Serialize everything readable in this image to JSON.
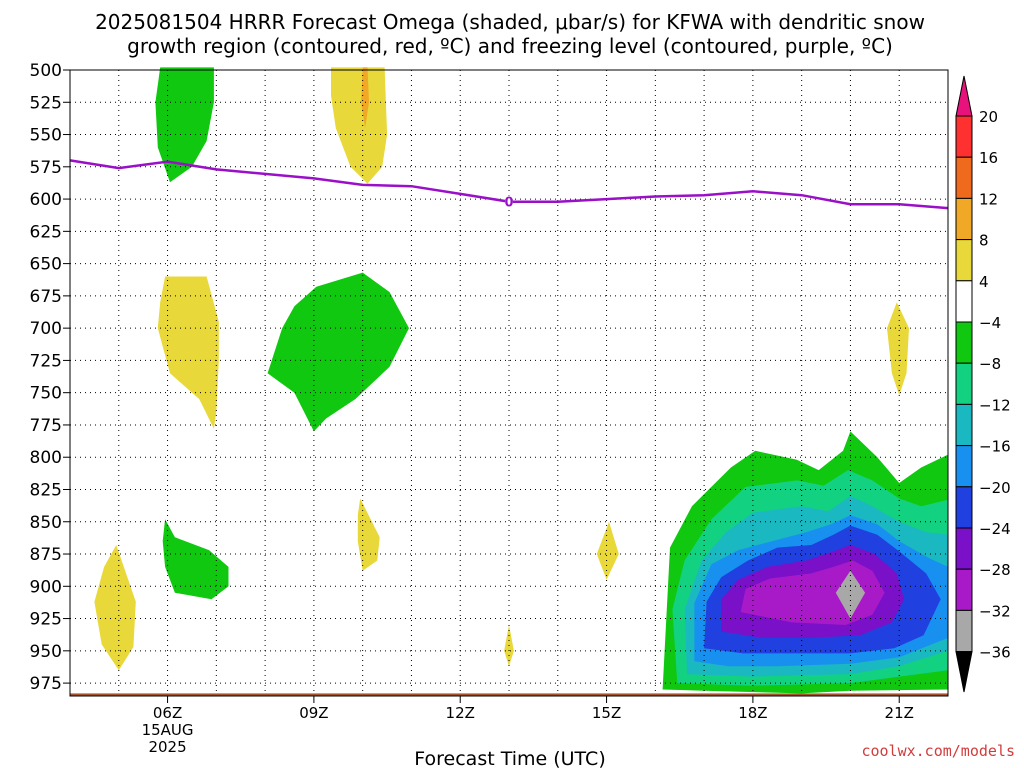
{
  "chart_data": {
    "type": "heatmap",
    "title": [
      "2025081504 HRRR Forecast Omega (shaded, μbar/s) for KFWA with dendritic snow",
      "growth region (contoured, red, ºC) and freezing level (contoured, purple, ºC)"
    ],
    "xlabel": "Forecast Time (UTC)",
    "ylabel": "",
    "x_range_hours": [
      4,
      22
    ],
    "y_range_hPa": [
      500,
      985
    ],
    "y_ticks": [
      "500",
      "525",
      "550",
      "575",
      "600",
      "625",
      "650",
      "675",
      "700",
      "725",
      "750",
      "775",
      "800",
      "825",
      "850",
      "875",
      "900",
      "925",
      "950",
      "975"
    ],
    "x_ticks": [
      {
        "hour": 6,
        "label": "06Z",
        "sub": [
          "15AUG",
          "2025"
        ]
      },
      {
        "hour": 9,
        "label": "09Z"
      },
      {
        "hour": 12,
        "label": "12Z"
      },
      {
        "hour": 15,
        "label": "15Z"
      },
      {
        "hour": 18,
        "label": "18Z"
      },
      {
        "hour": 21,
        "label": "21Z"
      }
    ],
    "grid": true,
    "colorbar": {
      "levels": [
        "20",
        "16",
        "12",
        "8",
        "4",
        "−4",
        "−8",
        "−12",
        "−16",
        "−20",
        "−24",
        "−28",
        "−32",
        "−36"
      ],
      "colors": [
        "#e8127d",
        "#ff3030",
        "#f06a1e",
        "#f0a826",
        "#e8d83a",
        "#ffffff",
        "#10c810",
        "#12d282",
        "#1ab8c0",
        "#1890f0",
        "#2040e0",
        "#7a10c8",
        "#a81ac8",
        "#a8a8a8",
        "#000000"
      ]
    },
    "freezing_level": {
      "color": "#9a10c8",
      "label": "0",
      "points": [
        [
          4.0,
          570
        ],
        [
          5.0,
          576
        ],
        [
          6.0,
          571
        ],
        [
          7.0,
          577
        ],
        [
          9.0,
          584
        ],
        [
          10.0,
          589
        ],
        [
          11.0,
          590
        ],
        [
          12.0,
          596
        ],
        [
          13.0,
          602
        ],
        [
          14.0,
          602
        ],
        [
          15.0,
          600
        ],
        [
          16.0,
          598
        ],
        [
          17.0,
          597
        ],
        [
          18.0,
          594
        ],
        [
          19.0,
          597
        ],
        [
          20.0,
          604
        ],
        [
          21.0,
          604
        ],
        [
          22.0,
          607
        ]
      ]
    },
    "features": [
      {
        "value": "-4",
        "color": "#10c810",
        "points": [
          [
            5.85,
            498
          ],
          [
            6.95,
            498
          ],
          [
            6.95,
            525
          ],
          [
            6.8,
            555
          ],
          [
            6.5,
            575
          ],
          [
            6.05,
            587
          ],
          [
            5.8,
            560
          ],
          [
            5.75,
            525
          ]
        ]
      },
      {
        "value": "4",
        "color": "#e8d83a",
        "points": [
          [
            9.35,
            498
          ],
          [
            10.45,
            498
          ],
          [
            10.5,
            550
          ],
          [
            10.4,
            575
          ],
          [
            10.1,
            588
          ],
          [
            9.75,
            575
          ],
          [
            9.45,
            545
          ],
          [
            9.35,
            520
          ]
        ]
      },
      {
        "value": "8",
        "color": "#f0a826",
        "points": [
          [
            9.97,
            525
          ],
          [
            10.05,
            545
          ],
          [
            10.13,
            525
          ],
          [
            10.1,
            498
          ],
          [
            10.0,
            498
          ]
        ]
      },
      {
        "value": "4",
        "color": "#e8d83a",
        "points": [
          [
            5.95,
            660
          ],
          [
            6.8,
            660
          ],
          [
            7.05,
            695
          ],
          [
            7.05,
            725
          ],
          [
            7.0,
            765
          ],
          [
            6.95,
            778
          ],
          [
            6.65,
            755
          ],
          [
            6.05,
            735
          ],
          [
            5.8,
            700
          ],
          [
            5.85,
            680
          ]
        ]
      },
      {
        "value": "-4",
        "color": "#10c810",
        "points": [
          [
            9.05,
            668
          ],
          [
            10.0,
            657
          ],
          [
            10.55,
            672
          ],
          [
            10.95,
            700
          ],
          [
            10.55,
            730
          ],
          [
            9.85,
            755
          ],
          [
            9.25,
            770
          ],
          [
            9.0,
            780
          ],
          [
            8.6,
            750
          ],
          [
            8.05,
            735
          ],
          [
            8.35,
            700
          ],
          [
            8.6,
            683
          ]
        ]
      },
      {
        "value": "4",
        "color": "#e8d83a",
        "points": [
          [
            20.95,
            680
          ],
          [
            21.2,
            700
          ],
          [
            21.15,
            735
          ],
          [
            21.0,
            752
          ],
          [
            20.85,
            735
          ],
          [
            20.75,
            700
          ]
        ]
      },
      {
        "value": "-4",
        "color": "#10c810",
        "points": [
          [
            5.95,
            848
          ],
          [
            6.15,
            862
          ],
          [
            6.85,
            872
          ],
          [
            7.25,
            885
          ],
          [
            7.25,
            900
          ],
          [
            6.9,
            910
          ],
          [
            6.15,
            905
          ],
          [
            5.95,
            885
          ],
          [
            5.9,
            865
          ]
        ]
      },
      {
        "value": "4",
        "color": "#e8d83a",
        "points": [
          [
            4.95,
            868
          ],
          [
            5.35,
            912
          ],
          [
            5.3,
            947
          ],
          [
            5.0,
            965
          ],
          [
            4.65,
            945
          ],
          [
            4.5,
            912
          ],
          [
            4.7,
            885
          ]
        ]
      },
      {
        "value": "4",
        "color": "#e8d83a",
        "points": [
          [
            9.95,
            832
          ],
          [
            10.35,
            862
          ],
          [
            10.3,
            880
          ],
          [
            10.0,
            888
          ],
          [
            9.9,
            865
          ],
          [
            9.9,
            845
          ]
        ]
      },
      {
        "value": "4",
        "color": "#e8d83a",
        "points": [
          [
            15.05,
            850
          ],
          [
            15.25,
            875
          ],
          [
            15.0,
            895
          ],
          [
            14.8,
            875
          ]
        ]
      },
      {
        "value": "4",
        "color": "#e8d83a",
        "points": [
          [
            13.0,
            930
          ],
          [
            13.1,
            950
          ],
          [
            13.0,
            962
          ],
          [
            12.9,
            950
          ]
        ]
      },
      {
        "value": "-4",
        "color": "#10c810",
        "points": [
          [
            16.15,
            980
          ],
          [
            16.3,
            870
          ],
          [
            16.75,
            838
          ],
          [
            17.55,
            808
          ],
          [
            18.05,
            795
          ],
          [
            18.9,
            802
          ],
          [
            19.35,
            810
          ],
          [
            19.85,
            795
          ],
          [
            20.0,
            780
          ],
          [
            20.55,
            800
          ],
          [
            21.0,
            820
          ],
          [
            21.45,
            808
          ],
          [
            22.0,
            798
          ],
          [
            22.0,
            980
          ],
          [
            20.0,
            981
          ],
          [
            19.0,
            983
          ],
          [
            17.0,
            981
          ]
        ]
      },
      {
        "value": "-8",
        "color": "#12d282",
        "points": [
          [
            16.45,
            975
          ],
          [
            16.35,
            918
          ],
          [
            16.6,
            880
          ],
          [
            17.15,
            848
          ],
          [
            17.85,
            823
          ],
          [
            18.9,
            818
          ],
          [
            19.45,
            822
          ],
          [
            19.95,
            810
          ],
          [
            20.45,
            818
          ],
          [
            21.0,
            832
          ],
          [
            21.45,
            838
          ],
          [
            22.0,
            833
          ],
          [
            22.0,
            965
          ],
          [
            20.0,
            975
          ],
          [
            18.0,
            977
          ]
        ]
      },
      {
        "value": "-12",
        "color": "#1ab8c0",
        "points": [
          [
            16.65,
            968
          ],
          [
            16.6,
            918
          ],
          [
            16.95,
            880
          ],
          [
            17.45,
            858
          ],
          [
            18.0,
            843
          ],
          [
            19.0,
            838
          ],
          [
            19.55,
            842
          ],
          [
            20.0,
            830
          ],
          [
            20.45,
            838
          ],
          [
            21.0,
            850
          ],
          [
            21.55,
            858
          ],
          [
            22.0,
            860
          ],
          [
            22.0,
            950
          ],
          [
            21.0,
            962
          ],
          [
            20.0,
            968
          ],
          [
            18.0,
            970
          ]
        ]
      },
      {
        "value": "-16",
        "color": "#1890f0",
        "points": [
          [
            16.8,
            958
          ],
          [
            16.8,
            913
          ],
          [
            17.15,
            883
          ],
          [
            17.7,
            872
          ],
          [
            18.4,
            865
          ],
          [
            19.1,
            858
          ],
          [
            19.6,
            852
          ],
          [
            20.0,
            845
          ],
          [
            20.55,
            852
          ],
          [
            21.0,
            865
          ],
          [
            21.6,
            878
          ],
          [
            22.0,
            885
          ],
          [
            22.0,
            940
          ],
          [
            21.0,
            955
          ],
          [
            20.0,
            960
          ],
          [
            18.5,
            962
          ],
          [
            17.5,
            962
          ]
        ]
      },
      {
        "value": "-20",
        "color": "#2040e0",
        "points": [
          [
            17.0,
            948
          ],
          [
            17.05,
            912
          ],
          [
            17.35,
            893
          ],
          [
            17.9,
            880
          ],
          [
            18.5,
            870
          ],
          [
            19.2,
            868
          ],
          [
            19.65,
            860
          ],
          [
            20.0,
            853
          ],
          [
            20.55,
            860
          ],
          [
            21.0,
            873
          ],
          [
            21.55,
            890
          ],
          [
            21.85,
            910
          ],
          [
            21.5,
            938
          ],
          [
            20.9,
            948
          ],
          [
            20.0,
            952
          ],
          [
            18.9,
            952
          ],
          [
            17.8,
            952
          ]
        ]
      },
      {
        "value": "-24",
        "color": "#7a10c8",
        "points": [
          [
            17.35,
            935
          ],
          [
            17.35,
            910
          ],
          [
            17.7,
            895
          ],
          [
            18.3,
            885
          ],
          [
            19.1,
            880
          ],
          [
            19.65,
            873
          ],
          [
            20.0,
            868
          ],
          [
            20.5,
            875
          ],
          [
            20.95,
            890
          ],
          [
            21.1,
            910
          ],
          [
            20.85,
            928
          ],
          [
            20.2,
            938
          ],
          [
            19.2,
            940
          ],
          [
            18.2,
            940
          ]
        ]
      },
      {
        "value": "-28",
        "color": "#a81ac8",
        "points": [
          [
            17.75,
            920
          ],
          [
            17.85,
            902
          ],
          [
            18.35,
            894
          ],
          [
            19.2,
            890
          ],
          [
            19.65,
            885
          ],
          [
            20.05,
            880
          ],
          [
            20.45,
            888
          ],
          [
            20.7,
            905
          ],
          [
            20.45,
            922
          ],
          [
            19.9,
            930
          ],
          [
            18.8,
            928
          ]
        ]
      },
      {
        "value": "-32",
        "color": "#a8a8a8",
        "points": [
          [
            20.0,
            888
          ],
          [
            20.3,
            905
          ],
          [
            20.0,
            925
          ],
          [
            19.7,
            905
          ]
        ]
      }
    ],
    "ground": {
      "color": "#a8522e",
      "top_hPa": 983
    }
  },
  "credit": "coolwx.com/models"
}
